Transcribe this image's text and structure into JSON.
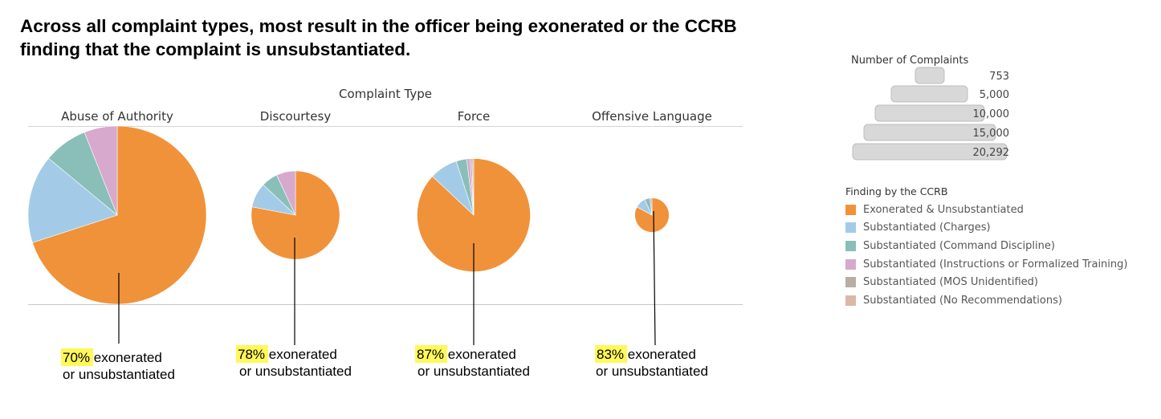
{
  "title": "Across all complaint types, most result in the officer being exonerated or the CCRB finding that the complaint is unsubstantiated.",
  "chart_data": {
    "type": "pie",
    "header": "Complaint Type",
    "size_encoding": "Number of Complaints",
    "categories": [
      {
        "name": "Abuse of Authority",
        "total": 20292,
        "slices": [
          70,
          16,
          8,
          6,
          0,
          0
        ],
        "annotation": {
          "highlight": "70%",
          "line1": " exonerated",
          "line2": "or unsubstantiated"
        }
      },
      {
        "name": "Discourtesy",
        "total": 5000,
        "slices": [
          78,
          9,
          6,
          7,
          0,
          0
        ],
        "annotation": {
          "highlight": "78%",
          "line1": " exonerated",
          "line2": "or unsubstantiated"
        }
      },
      {
        "name": "Force",
        "total": 8200,
        "slices": [
          87,
          8,
          3,
          1,
          0.5,
          0.5
        ],
        "annotation": {
          "highlight": "87%",
          "line1": " exonerated",
          "line2": "or unsubstantiated"
        }
      },
      {
        "name": "Offensive Language",
        "total": 753,
        "slices": [
          83,
          10,
          5,
          2,
          0,
          0
        ],
        "annotation": {
          "highlight": "83%",
          "line1": " exonerated",
          "line2": "or unsubstantiated"
        }
      }
    ],
    "size_legend": {
      "title": "Number of Complaints",
      "values": [
        753,
        5000,
        10000,
        15000,
        20292
      ],
      "labels": [
        "753",
        "5,000",
        "10,000",
        "15,000",
        "20,292"
      ]
    },
    "color_legend": {
      "title": "Finding by the CCRB",
      "items": [
        {
          "label": "Exonerated & Unsubstantiated",
          "color": "#f0923a"
        },
        {
          "label": "Substantiated (Charges)",
          "color": "#a3cbe8"
        },
        {
          "label": "Substantiated (Command Discipline)",
          "color": "#89bfb8"
        },
        {
          "label": "Substantiated (Instructions or Formalized Training)",
          "color": "#d7a9cc"
        },
        {
          "label": "Substantiated (MOS Unidentified)",
          "color": "#b9aea6"
        },
        {
          "label": "Substantiated (No Recommendations)",
          "color": "#d9b8a8"
        }
      ]
    }
  },
  "colors": {
    "highlight": "#fff85a",
    "axis": "#c8c8c8",
    "pointer": "#000000"
  }
}
